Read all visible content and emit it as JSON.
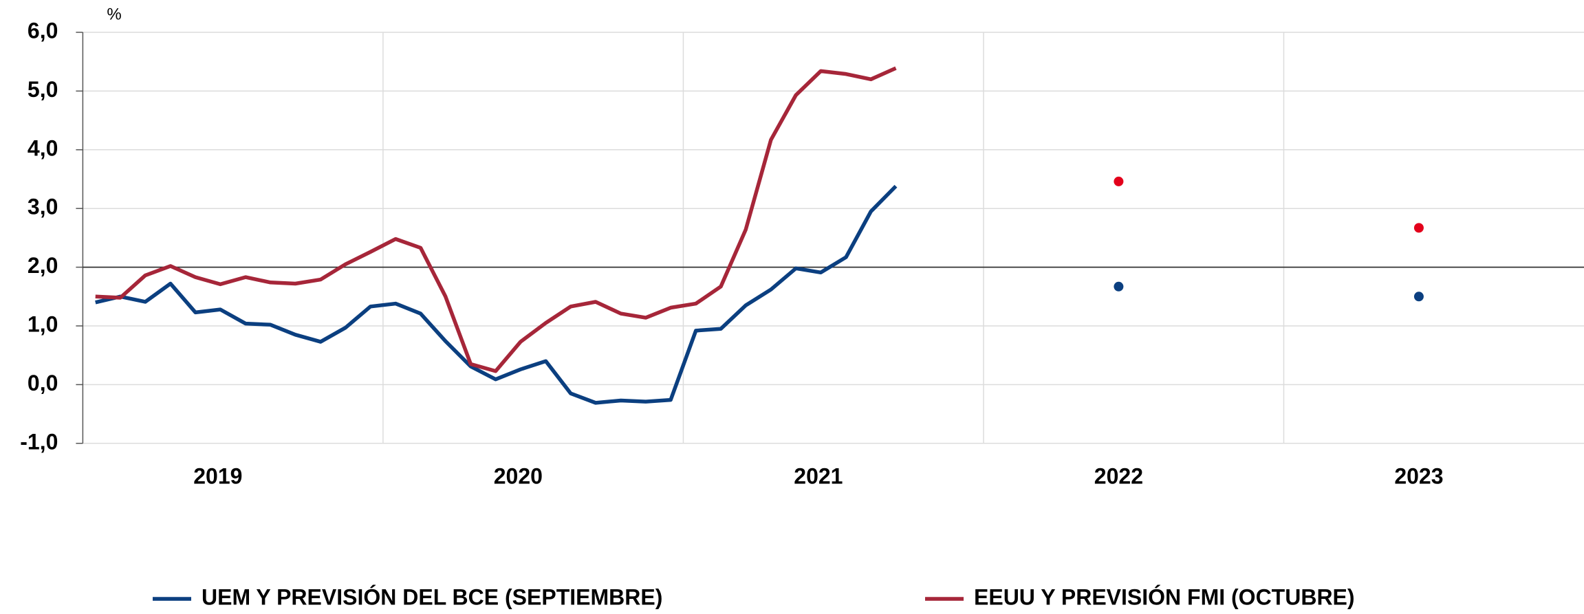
{
  "chart_data": {
    "type": "line",
    "y_unit": "%",
    "xlim": [
      2019,
      2024
    ],
    "xticks": [
      {
        "value": 2019.45,
        "label": "2019"
      },
      {
        "value": 2020.45,
        "label": "2020"
      },
      {
        "value": 2021.45,
        "label": "2021"
      },
      {
        "value": 2022.45,
        "label": "2022"
      },
      {
        "value": 2023.45,
        "label": "2023"
      }
    ],
    "ylim": [
      -1,
      6
    ],
    "yticks": [
      {
        "value": -1,
        "label": "-1,0"
      },
      {
        "value": 0,
        "label": "0,0"
      },
      {
        "value": 1,
        "label": "1,0"
      },
      {
        "value": 2,
        "label": "2,0"
      },
      {
        "value": 3,
        "label": "3,0"
      },
      {
        "value": 4,
        "label": "4,0"
      },
      {
        "value": 5,
        "label": "5,0"
      },
      {
        "value": 6,
        "label": "6,0"
      }
    ],
    "reference_line": 2,
    "grid": true,
    "x": [
      2019.042,
      2019.125,
      2019.208,
      2019.292,
      2019.375,
      2019.458,
      2019.542,
      2019.625,
      2019.708,
      2019.792,
      2019.875,
      2019.958,
      2020.042,
      2020.125,
      2020.208,
      2020.292,
      2020.375,
      2020.458,
      2020.542,
      2020.625,
      2020.708,
      2020.792,
      2020.875,
      2020.958,
      2021.042,
      2021.125,
      2021.208,
      2021.292,
      2021.375,
      2021.458,
      2021.542,
      2021.625,
      2021.708
    ],
    "series": [
      {
        "name": "UEM Y PREVISIÓN DEL BCE (SEPTIEMBRE)",
        "color": "#0b3f80",
        "values": [
          1.4,
          1.5,
          1.41,
          1.72,
          1.23,
          1.28,
          1.04,
          1.02,
          0.85,
          0.73,
          0.97,
          1.33,
          1.38,
          1.21,
          0.74,
          0.31,
          0.09,
          0.26,
          0.4,
          -0.15,
          -0.31,
          -0.27,
          -0.29,
          -0.26,
          0.92,
          0.95,
          1.35,
          1.62,
          1.98,
          1.91,
          2.17,
          2.95,
          3.38
        ],
        "forecast_x": [
          2022.45,
          2023.45
        ],
        "forecast_values": [
          1.67,
          1.5
        ],
        "forecast_color": "#0b3f80"
      },
      {
        "name": "EEUU Y PREVISIÓN FMI (OCTUBRE)",
        "color": "#a62639",
        "values": [
          1.5,
          1.48,
          1.86,
          2.02,
          1.83,
          1.71,
          1.83,
          1.74,
          1.72,
          1.79,
          2.05,
          2.26,
          2.48,
          2.33,
          1.5,
          0.35,
          0.23,
          0.73,
          1.05,
          1.33,
          1.41,
          1.21,
          1.14,
          1.31,
          1.38,
          1.67,
          2.64,
          4.17,
          4.93,
          5.34,
          5.29,
          5.2,
          5.39
        ],
        "forecast_x": [
          2022.45,
          2023.45
        ],
        "forecast_values": [
          3.46,
          2.67
        ],
        "forecast_color": "#e3001b"
      }
    ]
  }
}
